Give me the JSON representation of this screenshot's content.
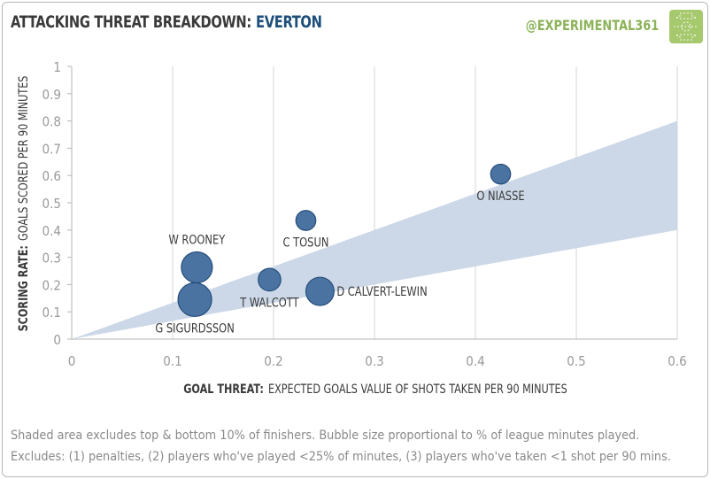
{
  "header": {
    "title_main": "ATTACKING THREAT BREAKDOWN:",
    "title_team": "EVERTON",
    "handle": "@EXPERIMENTAL361"
  },
  "colors": {
    "bubble": "#4a73a1",
    "bubble_stroke": "#244e7d",
    "band": "#c9d6e6",
    "title_team": "#1d4f7a",
    "handle": "#8db35a",
    "grid": "#d4d4d4",
    "axis_text": "#9a9a9a",
    "label_text": "#3a3a3a"
  },
  "chart_data": {
    "type": "scatter",
    "subtype": "bubble",
    "title": "ATTACKING THREAT BREAKDOWN: EVERTON",
    "xlabel_bold": "GOAL THREAT:",
    "xlabel_rest": "EXPECTED GOALS VALUE OF SHOTS TAKEN PER 90 MINUTES",
    "ylabel_bold": "SCORING RATE:",
    "ylabel_rest": "GOALS SCORED PER 90 MINUTES",
    "xlim": [
      0,
      0.6
    ],
    "ylim": [
      0,
      1
    ],
    "x_ticks": [
      0,
      0.1,
      0.2,
      0.3,
      0.4,
      0.5,
      0.6
    ],
    "x_tick_labels": [
      "0",
      "0.1",
      "0.2",
      "0.3",
      "0.4",
      "0.5",
      "0.6"
    ],
    "y_ticks": [
      0,
      0.1,
      0.2,
      0.3,
      0.4,
      0.5,
      0.6,
      0.7,
      0.8,
      0.9,
      1
    ],
    "y_tick_labels": [
      "0",
      "0.1",
      "0.2",
      "0.3",
      "0.4",
      "0.5",
      "0.6",
      "0.7",
      "0.8",
      "0.9",
      "1"
    ],
    "grid": "vertical",
    "shaded_band": {
      "description": "excludes top & bottom 10% of finishers",
      "upper": [
        [
          0,
          0
        ],
        [
          0.6,
          0.8
        ]
      ],
      "lower": [
        [
          0,
          0
        ],
        [
          0.6,
          0.4
        ]
      ]
    },
    "points": [
      {
        "name": "O NIASSE",
        "x": 0.425,
        "y": 0.605,
        "size": 0.35,
        "label_pos": "below"
      },
      {
        "name": "C TOSUN",
        "x": 0.232,
        "y": 0.435,
        "size": 0.35,
        "label_pos": "below"
      },
      {
        "name": "W ROONEY",
        "x": 0.124,
        "y": 0.263,
        "size": 0.85,
        "label_pos": "above"
      },
      {
        "name": "T WALCOTT",
        "x": 0.196,
        "y": 0.218,
        "size": 0.45,
        "label_pos": "below"
      },
      {
        "name": "D CALVERT-LEWIN",
        "x": 0.246,
        "y": 0.175,
        "size": 0.7,
        "label_pos": "right"
      },
      {
        "name": "G SIGURDSSON",
        "x": 0.122,
        "y": 0.145,
        "size": 1.0,
        "label_pos": "below"
      }
    ]
  },
  "footnote": {
    "line1": "Shaded area excludes top & bottom 10% of finishers. Bubble size proportional to % of league minutes played.",
    "line2": "Excludes: (1) penalties, (2) players who've played <25% of minutes, (3) players who've taken <1 shot per 90 mins."
  }
}
